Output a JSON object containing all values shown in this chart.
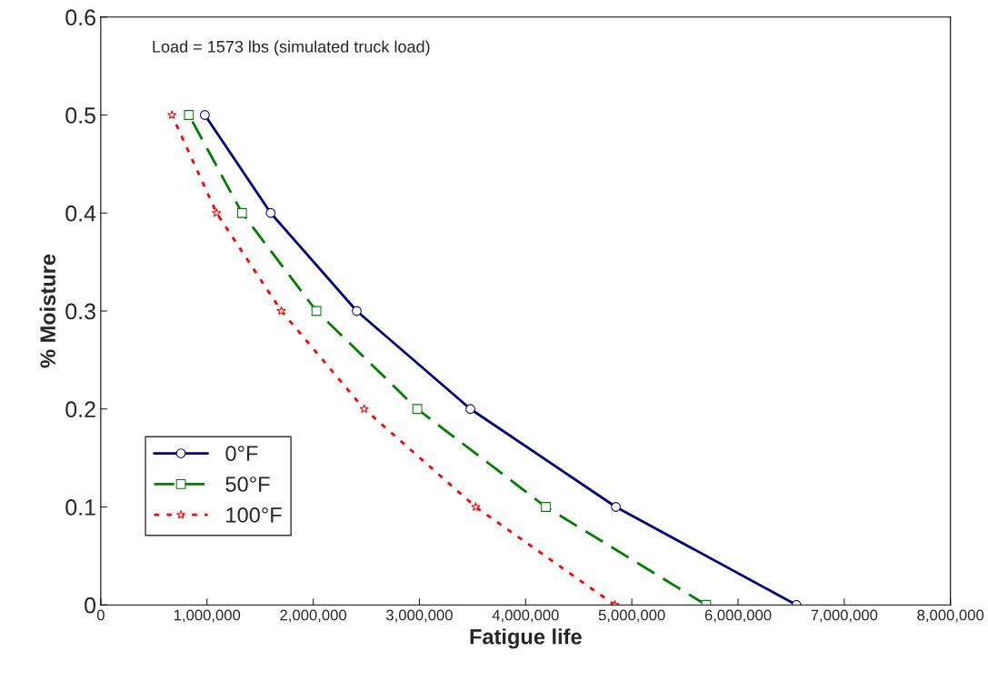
{
  "chart_data": {
    "type": "line",
    "xlabel": "Fatigue life",
    "ylabel": "% Moisture",
    "annotations": [
      "Load = 1573 lbs (simulated truck load)"
    ],
    "series": [
      {
        "name": "0°F",
        "color": "#000080",
        "marker": "circle",
        "line_style": "solid",
        "x": [
          6550000,
          4850000,
          3480000,
          2410000,
          1600000,
          980000
        ],
        "values": [
          0,
          0.1,
          0.2,
          0.3,
          0.4,
          0.5
        ]
      },
      {
        "name": "50°F",
        "color": "#008000",
        "marker": "square",
        "line_style": "dashed",
        "x": [
          5700000,
          4190000,
          2980000,
          2030000,
          1330000,
          830000
        ],
        "values": [
          0,
          0.1,
          0.2,
          0.3,
          0.4,
          0.5
        ]
      },
      {
        "name": "100°F",
        "color": "#ff0000",
        "marker": "star",
        "line_style": "dotted",
        "x": [
          4840000,
          3530000,
          2480000,
          1700000,
          1090000,
          670000
        ],
        "values": [
          0,
          0.1,
          0.2,
          0.3,
          0.4,
          0.5
        ]
      }
    ],
    "xlim": [
      0,
      8000000
    ],
    "xticks": [
      0,
      {
        "value": 1000000,
        "label": "1,000,000"
      },
      {
        "value": 2000000,
        "label": "2,000,000"
      },
      {
        "value": 3000000,
        "label": "3,000,000"
      },
      {
        "value": 4000000,
        "label": "4,000,000"
      },
      {
        "value": 5000000,
        "label": "5,000,000"
      },
      {
        "value": 6000000,
        "label": "6,000,000"
      },
      {
        "value": 7000000,
        "label": "7,000,000"
      },
      {
        "value": 8000000,
        "label": "8,000,000"
      }
    ],
    "ylim": [
      0,
      0.6
    ],
    "yticks": [
      0,
      0.1,
      0.2,
      0.3,
      0.4,
      0.5,
      0.6
    ],
    "grid": false,
    "legend": "bottom left"
  }
}
